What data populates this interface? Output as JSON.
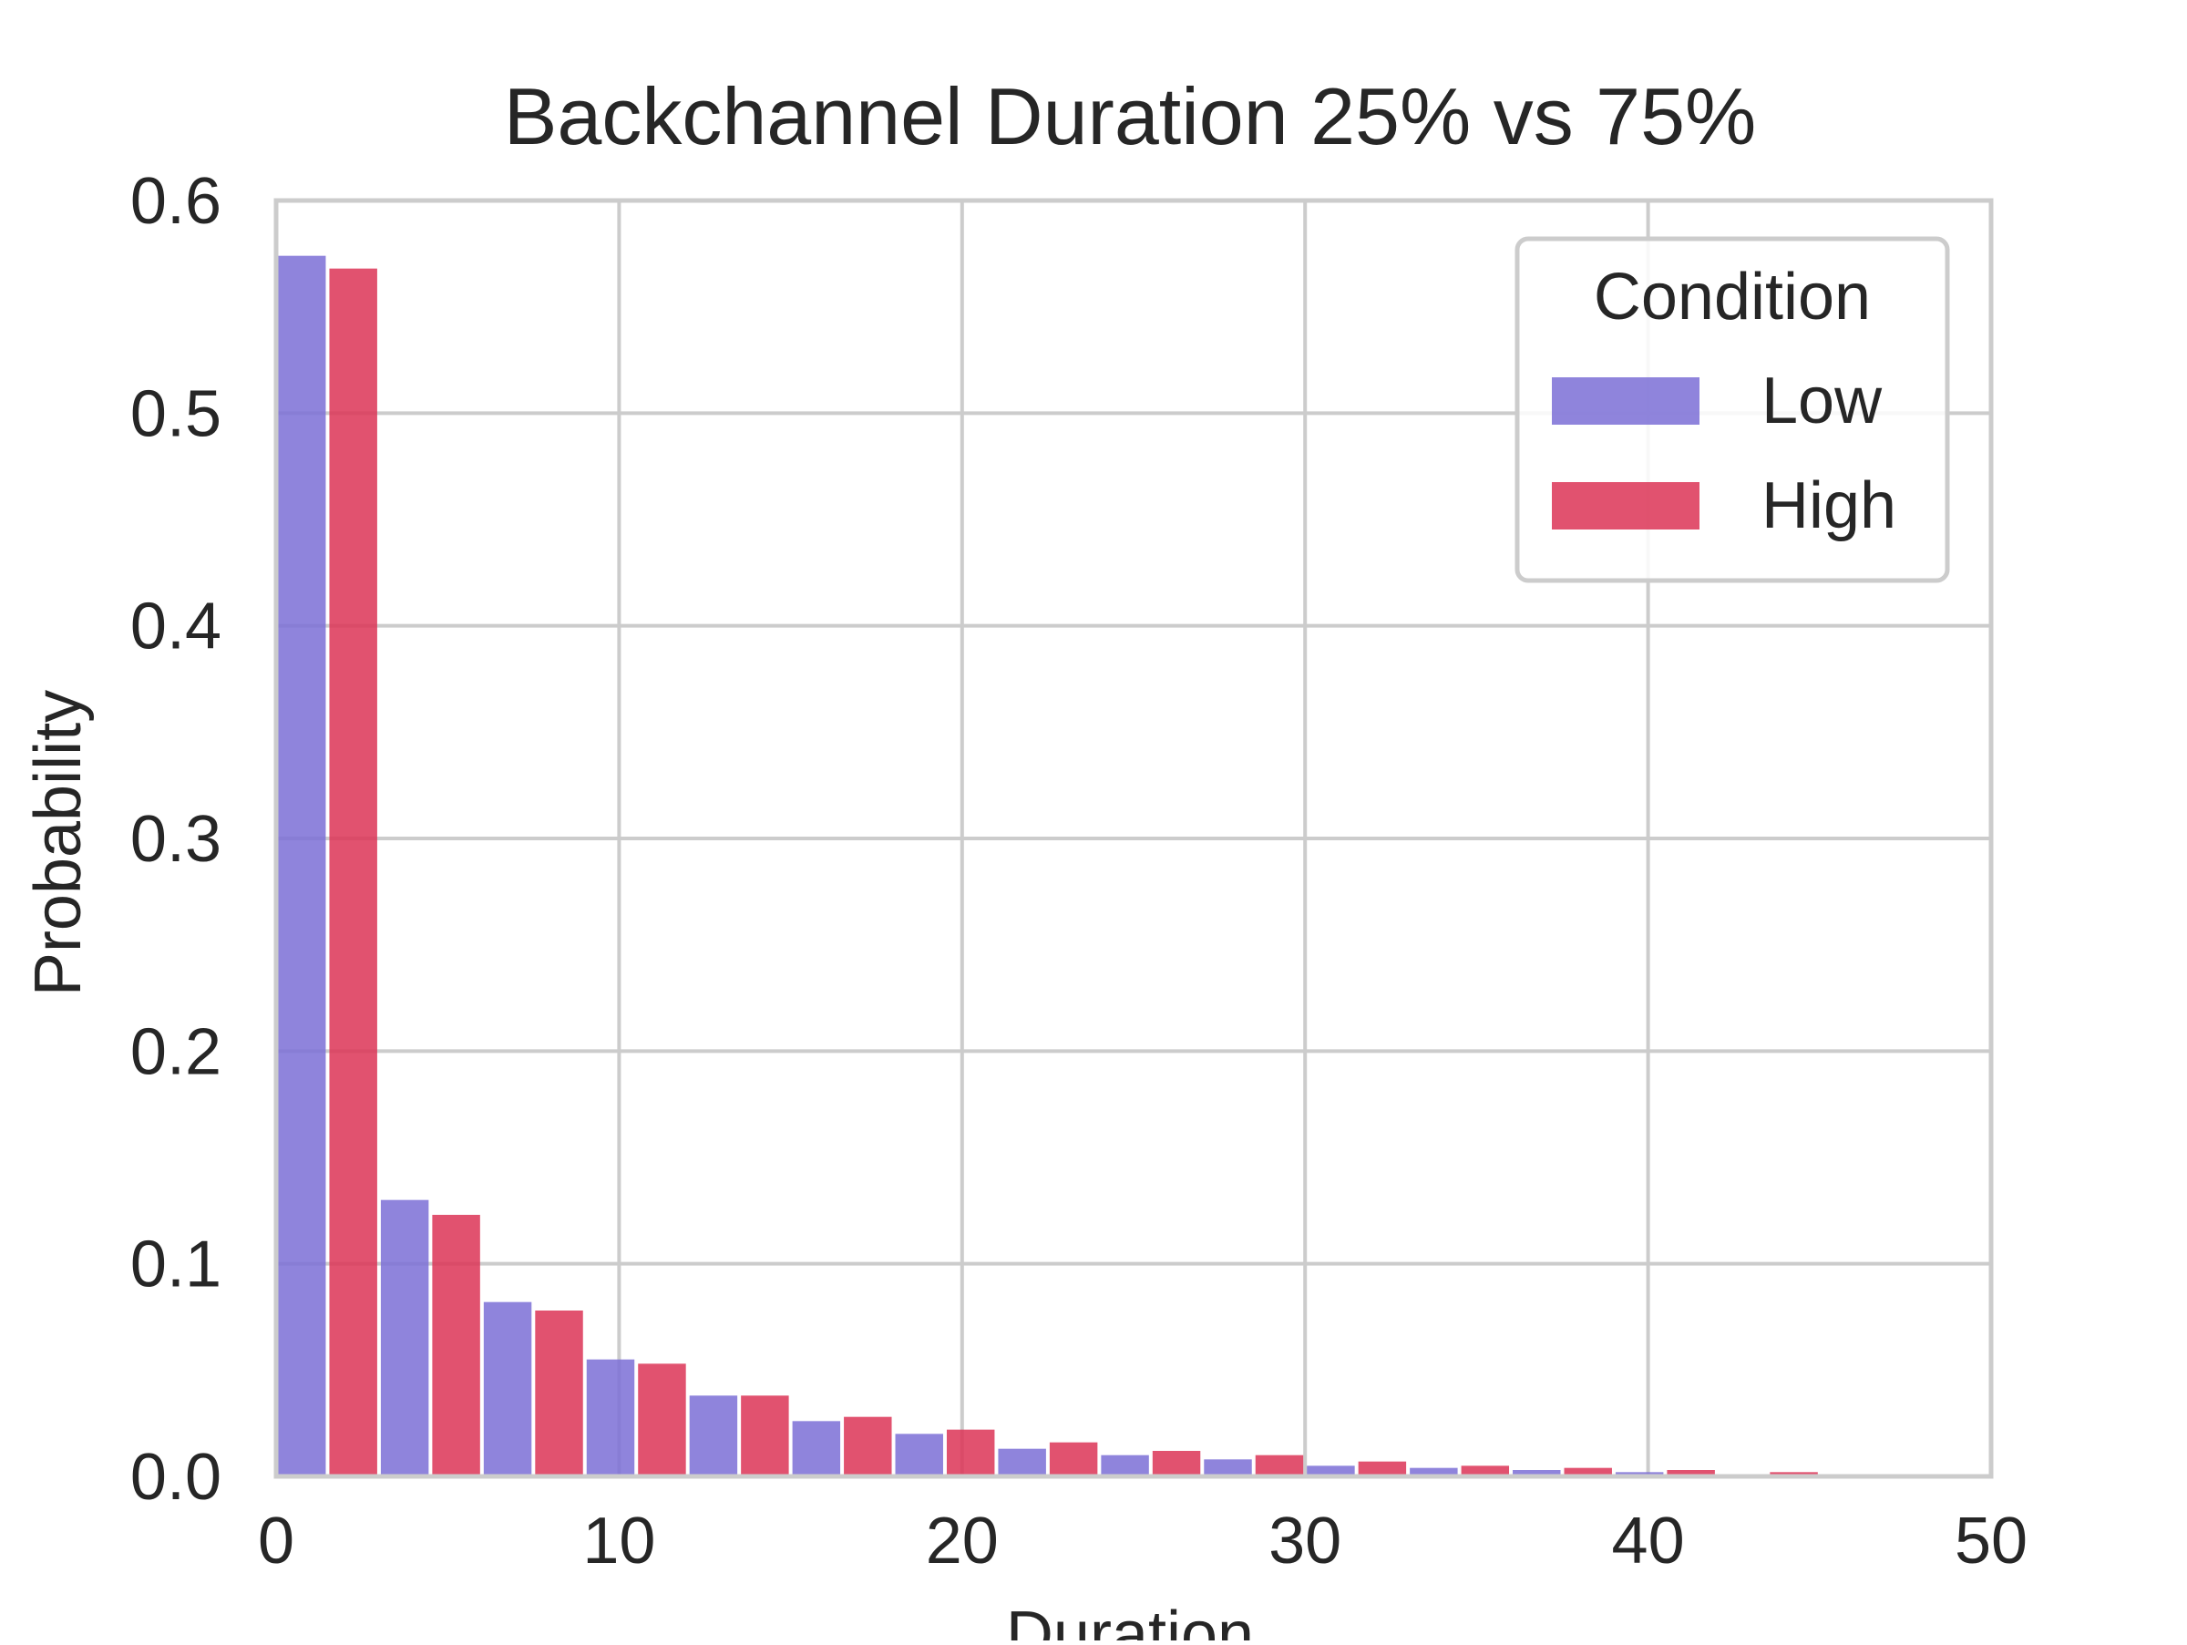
{
  "chart_data": {
    "type": "bar",
    "title": "Backchannel Duration 25% vs 75%",
    "xlabel": "Duration",
    "ylabel": "Probability",
    "xlim": [
      0,
      50
    ],
    "ylim": [
      0,
      0.6
    ],
    "xticks": [
      "0",
      "10",
      "20",
      "30",
      "40",
      "50"
    ],
    "yticks": [
      "0.0",
      "0.1",
      "0.2",
      "0.3",
      "0.4",
      "0.5",
      "0.6"
    ],
    "grid": true,
    "legend": {
      "title": "Condition",
      "position": "top-right"
    },
    "bin_width": 3,
    "bin_starts": [
      0,
      3,
      6,
      9,
      12,
      15,
      18,
      21,
      24,
      27,
      30,
      33,
      36,
      39,
      42,
      45
    ],
    "series": [
      {
        "name": "Low",
        "color": "#7b6fd6",
        "values": [
          0.574,
          0.13,
          0.082,
          0.055,
          0.038,
          0.026,
          0.02,
          0.013,
          0.01,
          0.008,
          0.005,
          0.004,
          0.003,
          0.002,
          0.001,
          0.001
        ]
      },
      {
        "name": "High",
        "color": "#dc3456",
        "values": [
          0.568,
          0.123,
          0.078,
          0.053,
          0.038,
          0.028,
          0.022,
          0.016,
          0.012,
          0.01,
          0.007,
          0.005,
          0.004,
          0.003,
          0.002,
          0.001
        ]
      }
    ]
  }
}
